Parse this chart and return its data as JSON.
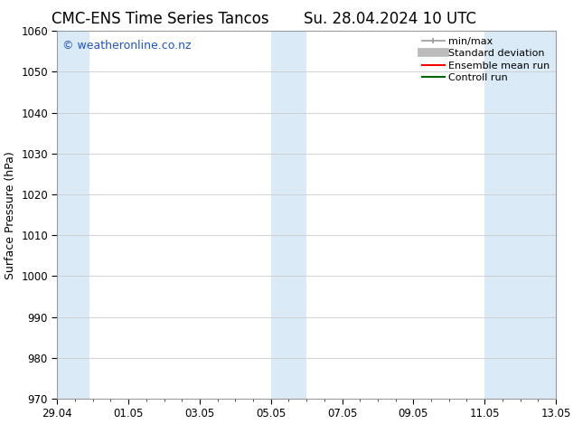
{
  "title_left": "CMC-ENS Time Series Tancos",
  "title_right": "Su. 28.04.2024 10 UTC",
  "ylabel": "Surface Pressure (hPa)",
  "ylim": [
    970,
    1060
  ],
  "yticks": [
    970,
    980,
    990,
    1000,
    1010,
    1020,
    1030,
    1040,
    1050,
    1060
  ],
  "x_start": 0,
  "x_end": 14,
  "xtick_labels": [
    "29.04",
    "01.05",
    "03.05",
    "05.05",
    "07.05",
    "09.05",
    "11.05",
    "13.05"
  ],
  "xtick_positions": [
    0,
    2,
    4,
    6,
    8,
    10,
    12,
    14
  ],
  "shaded_bands": [
    {
      "start": 0.0,
      "end": 0.9
    },
    {
      "start": 6.0,
      "end": 7.0
    },
    {
      "start": 12.0,
      "end": 14.0
    }
  ],
  "background_color": "#ffffff",
  "band_color": "#daeaf7",
  "watermark_text": "© weatheronline.co.nz",
  "watermark_color": "#2255bb",
  "legend_items": [
    {
      "label": "min/max",
      "color": "#999999",
      "lw": 1.2,
      "linestyle": "solid",
      "type": "minmax"
    },
    {
      "label": "Standard deviation",
      "color": "#bbbbbb",
      "lw": 7,
      "linestyle": "solid",
      "type": "fill"
    },
    {
      "label": "Ensemble mean run",
      "color": "#ff0000",
      "lw": 1.5,
      "linestyle": "solid",
      "type": "line"
    },
    {
      "label": "Controll run",
      "color": "#006600",
      "lw": 1.5,
      "linestyle": "solid",
      "type": "line"
    }
  ],
  "title_fontsize": 12,
  "tick_fontsize": 8.5,
  "label_fontsize": 9,
  "watermark_fontsize": 9,
  "legend_fontsize": 8,
  "grid_color": "#cccccc",
  "spine_color": "#999999",
  "title_font": "DejaVu Sans",
  "axis_font": "DejaVu Sans"
}
